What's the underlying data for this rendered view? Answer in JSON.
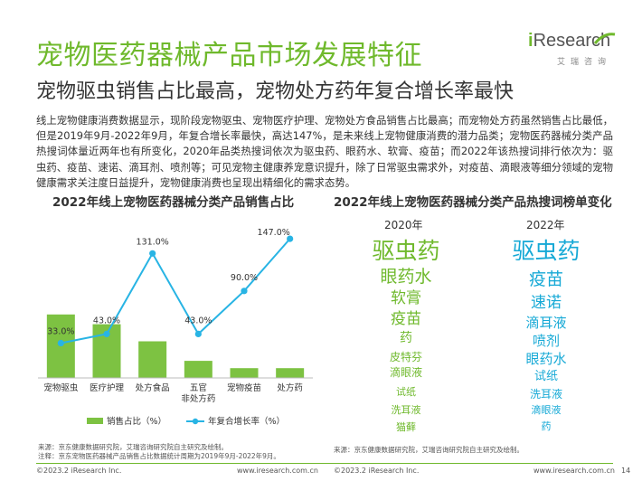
{
  "header": {
    "title": "宠物医药器械产品市场发展特征",
    "subtitle": "宠物驱虫销售占比最高，宠物处方药年复合增长率最快"
  },
  "logo": {
    "prefix": "i",
    "name": "Research",
    "cn": "艾瑞咨询",
    "color": "#6fb92c"
  },
  "body_text": "线上宠物健康消费数据显示，现阶段宠物驱虫、宠物医疗护理、宠物处方食品销售占比最高；而宠物处方药虽然销售占比最低，但是2019年9月-2022年9月，年复合增长率最快，高达147%，是未来线上宠物健康消费的潜力品类；宠物医药器械分类产品热搜词体量近两年也有所变化，2020年品类热搜词依次为驱虫药、眼药水、软膏、疫苗；而2022年该热搜词排行依次为：驱虫药、疫苗、速诺、滴耳剂、喷剂等；可见宠物主健康养宠意识提升，除了日常驱虫需求外，对疫苗、滴眼液等细分领域的宠物健康需求关注度日益提升，宠物健康消费也呈现出精细化的需求态势。",
  "left_chart": {
    "title": "2022年线上宠物医药器械分类产品销售占比",
    "legend_bar": "销售占比（%）",
    "legend_line": "年复合增长率（%）"
  },
  "chart_data": {
    "type": "bar",
    "categories": [
      "宠物驱虫",
      "医疗护理",
      "处方食品",
      "五官\n非处方药",
      "宠物疫苗",
      "处方药"
    ],
    "category_lines": [
      [
        "宠物驱虫"
      ],
      [
        "医疗护理"
      ],
      [
        "处方食品"
      ],
      [
        "五官",
        "非处方药"
      ],
      [
        "宠物疫苗"
      ],
      [
        "处方药"
      ]
    ],
    "series": [
      {
        "name": "销售占比（%）",
        "kind": "bar",
        "values": [
          26,
          22,
          15,
          7,
          4,
          4
        ],
        "color": "#7dc242"
      },
      {
        "name": "年复合增长率（%）",
        "kind": "line",
        "values": [
          33.0,
          43.0,
          131.0,
          43.0,
          90.0,
          147.0
        ],
        "labels": [
          "33.0%",
          "43.0%",
          "131.0%",
          "43.0%",
          "90.0%",
          "147.0%"
        ],
        "color": "#28b4e4"
      }
    ],
    "bar_ylim": [
      0,
      60
    ],
    "line_ylim": [
      -5,
      155
    ],
    "grid": false,
    "legend": "bottom"
  },
  "right_chart": {
    "title": "2022年线上宠物医药器械分类产品热搜词榜单变化",
    "col2020": {
      "year": "2020年",
      "color": "#6fb92c",
      "words": [
        "驱虫药",
        "眼药水",
        "软膏",
        "疫苗",
        "药",
        "皮特芬",
        "滴眼液",
        "试纸",
        "洗耳液",
        "猫藓"
      ]
    },
    "col2022": {
      "year": "2022年",
      "color": "#16a9d6",
      "words": [
        "驱虫药",
        "疫苗",
        "速诺",
        "滴耳液",
        "喷剂",
        "眼药水",
        "试纸",
        "洗耳液",
        "滴眼液",
        "药"
      ]
    }
  },
  "sources": {
    "left_1": "来源：京东健康数据研究院，艾瑞咨询研究院自主研究及绘制。",
    "left_2": "注释：京东宠物医药器械产品销售占比数据统计周期为2019年9月-2022年9月。",
    "right_1": "来源：京东健康数据研究院，艾瑞咨询研究院自主研究及绘制。"
  },
  "footer": {
    "copyright": "©2023.2 iResearch Inc.",
    "url": "www.iresearch.com.cn",
    "page": "14"
  }
}
